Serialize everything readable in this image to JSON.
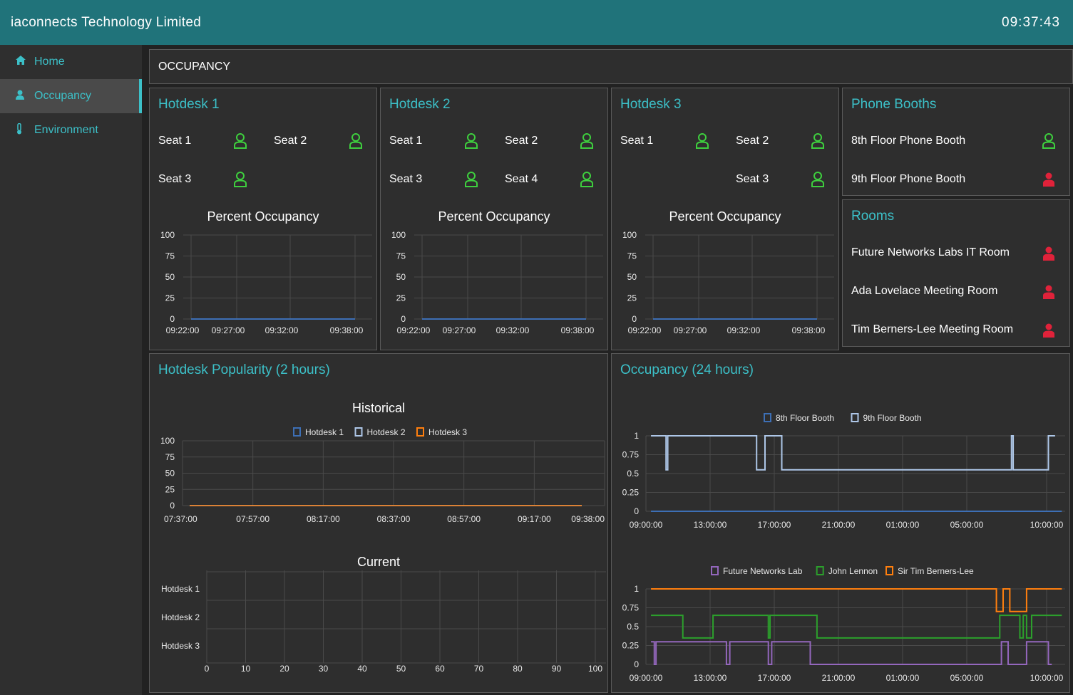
{
  "header": {
    "title": "iaconnects Technology Limited",
    "clock": "09:37:43"
  },
  "sidebar": {
    "items": [
      {
        "label": "Home",
        "icon": "home-icon"
      },
      {
        "label": "Occupancy",
        "icon": "user-icon",
        "active": true
      },
      {
        "label": "Environment",
        "icon": "thermometer-icon"
      }
    ]
  },
  "page": {
    "title": "OCCUPANCY"
  },
  "colors": {
    "accent": "#3cc0c8",
    "free": "#3ecf3e",
    "occupied": "#e0223a",
    "header": "#20737a"
  },
  "hotdesk1": {
    "title": "Hotdesk 1",
    "seats": [
      {
        "label": "Seat 1",
        "status": "free"
      },
      {
        "label": "Seat 2",
        "status": "free"
      },
      {
        "label": "Seat 3",
        "status": "free"
      }
    ],
    "chart_title": "Percent Occupancy"
  },
  "hotdesk2": {
    "title": "Hotdesk 2",
    "seats": [
      {
        "label": "Seat 1",
        "status": "free"
      },
      {
        "label": "Seat 2",
        "status": "free"
      },
      {
        "label": "Seat 3",
        "status": "free"
      },
      {
        "label": "Seat 4",
        "status": "free"
      }
    ],
    "chart_title": "Percent Occupancy"
  },
  "hotdesk3": {
    "title": "Hotdesk 3",
    "seats": [
      {
        "label": "Seat 1",
        "status": "free"
      },
      {
        "label": "Seat 2",
        "status": "free"
      },
      {
        "label": "Seat 3",
        "status": "free"
      }
    ],
    "chart_title": "Percent Occupancy"
  },
  "phone_booths": {
    "title": "Phone Booths",
    "items": [
      {
        "label": "8th Floor Phone Booth",
        "status": "free"
      },
      {
        "label": "9th Floor Phone Booth",
        "status": "occupied"
      }
    ]
  },
  "rooms": {
    "title": "Rooms",
    "items": [
      {
        "label": "Future Networks Labs IT Room",
        "status": "occupied"
      },
      {
        "label": "Ada Lovelace Meeting Room",
        "status": "occupied"
      },
      {
        "label": "Tim Berners-Lee Meeting Room",
        "status": "occupied"
      }
    ]
  },
  "popularity": {
    "title": "Hotdesk Popularity (2 hours)"
  },
  "occupancy24": {
    "title": "Occupancy (24 hours)"
  },
  "chart_data": [
    {
      "id": "hd1",
      "type": "line",
      "title": "Percent Occupancy",
      "x": [
        "09:22:00",
        "09:27:00",
        "09:32:00",
        "09:38:00"
      ],
      "yticks": [
        0,
        25,
        50,
        75,
        100
      ],
      "ylim": [
        0,
        100
      ],
      "series": [
        {
          "values": [
            0,
            0,
            0,
            0
          ],
          "color": "#3d6fb5"
        }
      ]
    },
    {
      "id": "hd2",
      "type": "line",
      "title": "Percent Occupancy",
      "x": [
        "09:22:00",
        "09:27:00",
        "09:32:00",
        "09:38:00"
      ],
      "yticks": [
        0,
        25,
        50,
        75,
        100
      ],
      "ylim": [
        0,
        100
      ],
      "series": [
        {
          "values": [
            0,
            0,
            0,
            0
          ],
          "color": "#3d6fb5"
        }
      ]
    },
    {
      "id": "hd3",
      "type": "line",
      "title": "Percent Occupancy",
      "x": [
        "09:22:00",
        "09:27:00",
        "09:32:00",
        "09:38:00"
      ],
      "yticks": [
        0,
        25,
        50,
        75,
        100
      ],
      "ylim": [
        0,
        100
      ],
      "series": [
        {
          "values": [
            0,
            0,
            0,
            0
          ],
          "color": "#3d6fb5"
        }
      ]
    },
    {
      "id": "historical",
      "type": "line",
      "title": "Historical",
      "x": [
        "07:37:00",
        "07:57:00",
        "08:17:00",
        "08:37:00",
        "08:57:00",
        "09:17:00",
        "09:38:00"
      ],
      "yticks": [
        0,
        25,
        50,
        75,
        100
      ],
      "ylim": [
        0,
        100
      ],
      "series": [
        {
          "name": "Hotdesk 1",
          "color": "#3d6fb5",
          "values": [
            0,
            0,
            0,
            0,
            0,
            0,
            0
          ]
        },
        {
          "name": "Hotdesk 2",
          "color": "#aec7e8",
          "values": [
            0,
            0,
            0,
            0,
            0,
            0,
            0
          ]
        },
        {
          "name": "Hotdesk 3",
          "color": "#ff7f0e",
          "values": [
            0,
            0,
            0,
            0,
            0,
            0,
            0
          ]
        }
      ]
    },
    {
      "id": "current",
      "type": "bar",
      "title": "Current",
      "orientation": "horizontal",
      "categories": [
        "Hotdesk 1",
        "Hotdesk 2",
        "Hotdesk 3"
      ],
      "values": [
        0,
        0,
        0
      ],
      "xticks": [
        0,
        10,
        20,
        30,
        40,
        50,
        60,
        70,
        80,
        90,
        100
      ],
      "xlim": [
        0,
        100
      ]
    },
    {
      "id": "booths24",
      "type": "line",
      "step": true,
      "xticks": [
        "09:00:00",
        "13:00:00",
        "17:00:00",
        "21:00:00",
        "01:00:00",
        "05:00:00",
        "10:00:00"
      ],
      "xlim_hours": [
        0,
        25
      ],
      "yticks": [
        "0",
        "0.25",
        "0.5",
        "0.75",
        "1"
      ],
      "ylim": [
        0,
        1
      ],
      "series": [
        {
          "name": "8th Floor Booth",
          "color": "#3d6fb5",
          "points": [
            [
              0.3,
              0
            ],
            [
              24.8,
              0
            ]
          ]
        },
        {
          "name": "9th Floor Booth",
          "color": "#aec7e8",
          "points": [
            [
              0.3,
              1
            ],
            [
              1.2,
              1
            ],
            [
              1.2,
              0.55
            ],
            [
              1.3,
              0.55
            ],
            [
              1.3,
              1
            ],
            [
              6.6,
              1
            ],
            [
              6.6,
              0.55
            ],
            [
              7.1,
              0.55
            ],
            [
              7.1,
              1
            ],
            [
              8.1,
              1
            ],
            [
              8.1,
              0.55
            ],
            [
              21.8,
              0.55
            ],
            [
              21.8,
              1
            ],
            [
              21.9,
              1
            ],
            [
              21.9,
              0.55
            ],
            [
              24.0,
              0.55
            ],
            [
              24.0,
              1
            ],
            [
              24.4,
              1
            ]
          ]
        }
      ]
    },
    {
      "id": "rooms24",
      "type": "line",
      "step": true,
      "xticks": [
        "09:00:00",
        "13:00:00",
        "17:00:00",
        "21:00:00",
        "01:00:00",
        "05:00:00",
        "10:00:00"
      ],
      "xlim_hours": [
        0,
        25
      ],
      "yticks": [
        "0",
        "0.25",
        "0.5",
        "0.75",
        "1"
      ],
      "ylim": [
        0,
        1
      ],
      "series": [
        {
          "name": "Future Networks Lab",
          "color": "#9467bd",
          "points": [
            [
              0.3,
              0.3
            ],
            [
              0.5,
              0.3
            ],
            [
              0.5,
              0
            ],
            [
              0.6,
              0
            ],
            [
              0.6,
              0.3
            ],
            [
              4.8,
              0.3
            ],
            [
              4.8,
              0
            ],
            [
              5.0,
              0
            ],
            [
              5.0,
              0.3
            ],
            [
              7.3,
              0.3
            ],
            [
              7.3,
              0
            ],
            [
              7.5,
              0
            ],
            [
              7.5,
              0.3
            ],
            [
              9.8,
              0.3
            ],
            [
              9.8,
              0
            ],
            [
              21.2,
              0
            ],
            [
              21.2,
              0.3
            ],
            [
              21.6,
              0.3
            ],
            [
              21.6,
              0
            ],
            [
              22.7,
              0
            ],
            [
              22.7,
              0.3
            ],
            [
              24.0,
              0.3
            ],
            [
              24.0,
              0
            ],
            [
              24.2,
              0
            ]
          ]
        },
        {
          "name": "John Lennon",
          "color": "#2ca02c",
          "points": [
            [
              0.3,
              0.65
            ],
            [
              2.2,
              0.65
            ],
            [
              2.2,
              0.35
            ],
            [
              4.0,
              0.35
            ],
            [
              4.0,
              0.65
            ],
            [
              7.3,
              0.65
            ],
            [
              7.3,
              0.35
            ],
            [
              7.4,
              0.35
            ],
            [
              7.4,
              0.65
            ],
            [
              10.2,
              0.65
            ],
            [
              10.2,
              0.35
            ],
            [
              21.1,
              0.35
            ],
            [
              21.1,
              0.65
            ],
            [
              22.3,
              0.65
            ],
            [
              22.3,
              0.35
            ],
            [
              22.5,
              0.35
            ],
            [
              22.5,
              0.65
            ],
            [
              22.7,
              0.65
            ],
            [
              22.7,
              0.35
            ],
            [
              23.0,
              0.35
            ],
            [
              23.0,
              0.65
            ],
            [
              24.8,
              0.65
            ]
          ]
        },
        {
          "name": "Sir Tim Berners-Lee",
          "color": "#ff7f0e",
          "points": [
            [
              0.3,
              1
            ],
            [
              20.9,
              1
            ],
            [
              20.9,
              0.7
            ],
            [
              21.3,
              0.7
            ],
            [
              21.3,
              1
            ],
            [
              21.7,
              1
            ],
            [
              21.7,
              0.7
            ],
            [
              22.7,
              0.7
            ],
            [
              22.7,
              1
            ],
            [
              24.8,
              1
            ]
          ]
        }
      ]
    }
  ]
}
